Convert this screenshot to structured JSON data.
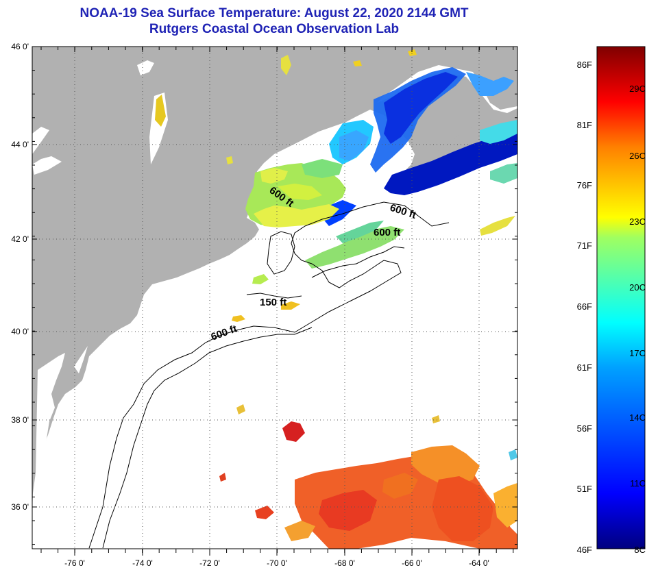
{
  "header": {
    "title": "NOAA-19 Sea Surface Temperature:  August 22, 2020 2144 GMT",
    "subtitle": "Rutgers Coastal Ocean Observation Lab"
  },
  "map": {
    "lat_labels": [
      "46 0'",
      "44 0'",
      "42 0'",
      "40 0'",
      "38 0'",
      "36 0'"
    ],
    "lon_labels": [
      "-76 0'",
      "-74 0'",
      "-72 0'",
      "-70 0'",
      "-68 0'",
      "-66 0'",
      "-64 0'"
    ],
    "lat_range": [
      35.0,
      46.0
    ],
    "lon_range": [
      -77.0,
      -62.9
    ],
    "contour_labels": [
      "600 ft",
      "600 ft",
      "600 ft",
      "150 ft",
      "600 ft"
    ]
  },
  "colorbar": {
    "fahrenheit_labels": [
      "86F",
      "81F",
      "76F",
      "71F",
      "66F",
      "61F",
      "56F",
      "51F",
      "46F"
    ],
    "celsius_labels": [
      "29C",
      "26C",
      "23C",
      "20C",
      "17C",
      "14C",
      "11C",
      "8C"
    ],
    "range_f": [
      46,
      87
    ],
    "colors": {
      "land": "#b1b1b1",
      "cold": "#000080",
      "warm": "#800000"
    }
  }
}
